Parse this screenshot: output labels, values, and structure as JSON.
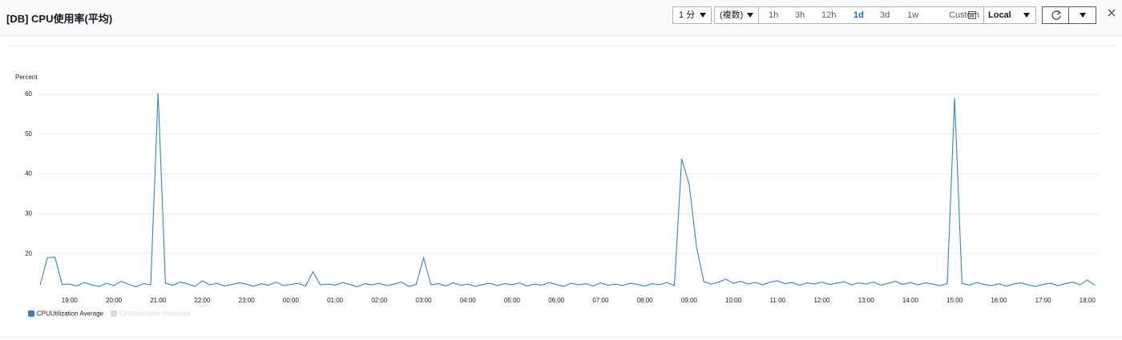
{
  "header": {
    "title": "[DB] CPU使用率(平均)",
    "period": "1 分",
    "statistic": "(複数)",
    "ranges": [
      "1h",
      "3h",
      "12h",
      "1d",
      "3d",
      "1w"
    ],
    "selected_range": "1d",
    "custom": "Custom",
    "timezone": "Local"
  },
  "chart_data": {
    "type": "line",
    "y_label": "Percent",
    "x": [
      "18:20",
      "18:30",
      "18:40",
      "18:50",
      "19:00",
      "19:10",
      "19:20",
      "19:30",
      "19:40",
      "19:50",
      "20:00",
      "20:10",
      "20:20",
      "20:30",
      "20:40",
      "20:50",
      "21:00",
      "21:10",
      "21:20",
      "21:30",
      "21:40",
      "21:50",
      "22:00",
      "22:10",
      "22:20",
      "22:30",
      "22:40",
      "22:50",
      "23:00",
      "23:10",
      "23:20",
      "23:30",
      "23:40",
      "23:50",
      "00:00",
      "00:10",
      "00:20",
      "00:30",
      "00:40",
      "00:50",
      "01:00",
      "01:10",
      "01:20",
      "01:30",
      "01:40",
      "01:50",
      "02:00",
      "02:10",
      "02:20",
      "02:30",
      "02:40",
      "02:50",
      "03:00",
      "03:10",
      "03:20",
      "03:30",
      "03:40",
      "03:50",
      "04:00",
      "04:10",
      "04:20",
      "04:30",
      "04:40",
      "04:50",
      "05:00",
      "05:10",
      "05:20",
      "05:30",
      "05:40",
      "05:50",
      "06:00",
      "06:10",
      "06:20",
      "06:30",
      "06:40",
      "06:50",
      "07:00",
      "07:10",
      "07:20",
      "07:30",
      "07:40",
      "07:50",
      "08:00",
      "08:10",
      "08:20",
      "08:30",
      "08:40",
      "08:50",
      "09:00",
      "09:10",
      "09:20",
      "09:30",
      "09:40",
      "09:50",
      "10:00",
      "10:10",
      "10:20",
      "10:30",
      "10:40",
      "10:50",
      "11:00",
      "11:10",
      "11:20",
      "11:30",
      "11:40",
      "11:50",
      "12:00",
      "12:10",
      "12:20",
      "12:30",
      "12:40",
      "12:50",
      "13:00",
      "13:10",
      "13:20",
      "13:30",
      "13:40",
      "13:50",
      "14:00",
      "14:10",
      "14:20",
      "14:30",
      "14:40",
      "14:50",
      "15:00",
      "15:10",
      "15:20",
      "15:30",
      "15:40",
      "15:50",
      "16:00",
      "16:10",
      "16:20",
      "16:30",
      "16:40",
      "16:50",
      "17:00",
      "17:10",
      "17:20",
      "17:30",
      "17:40",
      "17:50",
      "18:00",
      "18:10"
    ],
    "series": [
      {
        "name": "CPUUtilization Average",
        "color": "#2e86c1",
        "visible": true,
        "values": [
          12.1,
          19.0,
          19.2,
          12.3,
          12.4,
          11.9,
          12.8,
          12.2,
          11.8,
          12.6,
          12.0,
          13.1,
          12.3,
          11.7,
          12.5,
          12.2,
          60.3,
          12.6,
          12.1,
          12.9,
          12.4,
          11.8,
          13.2,
          12.2,
          12.6,
          11.9,
          12.3,
          12.7,
          12.4,
          11.8,
          12.5,
          12.1,
          12.9,
          12.0,
          12.3,
          12.6,
          11.9,
          15.5,
          12.2,
          12.4,
          12.1,
          12.8,
          12.3,
          11.7,
          12.5,
          12.2,
          12.6,
          12.0,
          12.4,
          12.9,
          11.8,
          12.3,
          19.0,
          12.2,
          12.5,
          11.9,
          12.7,
          12.1,
          12.4,
          11.8,
          12.3,
          12.6,
          12.0,
          12.5,
          12.2,
          12.7,
          11.9,
          12.4,
          12.1,
          12.8,
          12.3,
          11.8,
          12.6,
          12.2,
          12.5,
          11.9,
          12.7,
          12.1,
          12.4,
          12.0,
          12.6,
          12.3,
          11.9,
          12.5,
          12.2,
          12.8,
          12.0,
          43.8,
          37.5,
          21.8,
          13.0,
          12.4,
          12.9,
          13.6,
          12.6,
          13.1,
          12.4,
          12.8,
          12.2,
          12.9,
          13.2,
          12.5,
          12.8,
          12.1,
          12.7,
          12.4,
          12.9,
          12.3,
          12.6,
          13.0,
          12.2,
          12.7,
          12.4,
          12.9,
          12.1,
          12.6,
          13.1,
          12.3,
          12.8,
          12.2,
          12.7,
          12.4,
          12.0,
          12.5,
          59.0,
          12.6,
          12.1,
          12.8,
          12.3,
          12.0,
          12.5,
          11.9,
          12.4,
          12.7,
          12.2,
          11.8,
          12.3,
          12.6,
          12.0,
          12.5,
          12.9,
          12.2,
          13.4,
          12.1
        ]
      },
      {
        "name": "CPUUtilization Maximum",
        "color": "#d5dbdb",
        "visible": false
      }
    ],
    "xticks": [
      "19:00",
      "20:00",
      "21:00",
      "22:00",
      "23:00",
      "00:00",
      "01:00",
      "02:00",
      "03:00",
      "04:00",
      "05:00",
      "06:00",
      "07:00",
      "08:00",
      "09:00",
      "10:00",
      "11:00",
      "12:00",
      "13:00",
      "14:00",
      "15:00",
      "16:00",
      "17:00",
      "18:00"
    ],
    "ylim": [
      10,
      62
    ],
    "yticks": [
      20,
      30,
      40,
      50,
      60
    ],
    "grid": true
  }
}
